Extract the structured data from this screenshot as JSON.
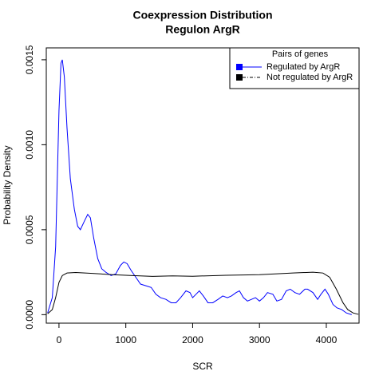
{
  "chart_data": {
    "type": "line",
    "title": [
      "Coexpression Distribution",
      "Regulon ArgR"
    ],
    "x_label": "SCR",
    "y_label": "Probability Density",
    "xlim": [
      -190,
      4490
    ],
    "ylim": [
      -5e-05,
      0.00157
    ],
    "xticks": [
      0,
      1000,
      2000,
      3000,
      4000
    ],
    "yticks": [
      {
        "value": 0,
        "label": "0.0000"
      },
      {
        "value": 0.0005,
        "label": "0.0005"
      },
      {
        "value": 0.001,
        "label": "0.0010"
      },
      {
        "value": 0.0015,
        "label": "0.0015"
      }
    ],
    "legend_title": "Pairs of genes",
    "legend_position": "top-right",
    "series": [
      {
        "name": "Regulated by  ArgR",
        "color": "#0000ff",
        "x": [
          -170,
          -100,
          -50,
          0,
          30,
          50,
          80,
          120,
          170,
          230,
          280,
          320,
          380,
          430,
          470,
          520,
          580,
          640,
          700,
          780,
          850,
          920,
          970,
          1020,
          1080,
          1150,
          1220,
          1300,
          1380,
          1450,
          1520,
          1600,
          1680,
          1750,
          1820,
          1900,
          1960,
          2000,
          2050,
          2100,
          2160,
          2230,
          2300,
          2380,
          2450,
          2520,
          2580,
          2650,
          2700,
          2760,
          2820,
          2880,
          2940,
          3000,
          3060,
          3120,
          3200,
          3260,
          3330,
          3400,
          3460,
          3530,
          3600,
          3680,
          3720,
          3800,
          3870,
          3920,
          3980,
          4030,
          4100,
          4160,
          4230,
          4300,
          4380
        ],
        "values": [
          1e-05,
          0.0001,
          0.0004,
          0.0012,
          0.00148,
          0.0015,
          0.0014,
          0.0011,
          0.0008,
          0.00062,
          0.00052,
          0.0005,
          0.00055,
          0.00059,
          0.00057,
          0.00045,
          0.00033,
          0.00027,
          0.00025,
          0.00023,
          0.00024,
          0.00029,
          0.00031,
          0.0003,
          0.00026,
          0.00022,
          0.00018,
          0.00017,
          0.00016,
          0.00012,
          0.0001,
          9e-05,
          7e-05,
          7e-05,
          0.0001,
          0.00014,
          0.00013,
          0.0001,
          0.00012,
          0.00014,
          0.00011,
          7e-05,
          7e-05,
          9e-05,
          0.00011,
          0.0001,
          0.00011,
          0.00013,
          0.00014,
          0.0001,
          8e-05,
          9e-05,
          0.0001,
          8e-05,
          0.0001,
          0.00013,
          0.00012,
          8e-05,
          9e-05,
          0.00014,
          0.00015,
          0.00013,
          0.00012,
          0.00015,
          0.00015,
          0.00013,
          9e-05,
          0.00012,
          0.00015,
          0.00012,
          6e-05,
          4e-05,
          3e-05,
          1e-05,
          0
        ]
      },
      {
        "name": "Not regulated by  ArgR",
        "color": "#000000",
        "x": [
          -170,
          -100,
          -50,
          0,
          50,
          120,
          250,
          500,
          800,
          1100,
          1400,
          1700,
          2000,
          2500,
          3000,
          3500,
          3800,
          3950,
          4050,
          4150,
          4250,
          4320,
          4400,
          4480
        ],
        "values": [
          5e-06,
          3e-05,
          0.0001,
          0.00019,
          0.00023,
          0.000245,
          0.000248,
          0.000243,
          0.000235,
          0.00023,
          0.000225,
          0.000228,
          0.000226,
          0.000232,
          0.000235,
          0.000245,
          0.00025,
          0.000245,
          0.00022,
          0.00015,
          7e-05,
          3e-05,
          1e-05,
          2e-06
        ]
      }
    ]
  }
}
